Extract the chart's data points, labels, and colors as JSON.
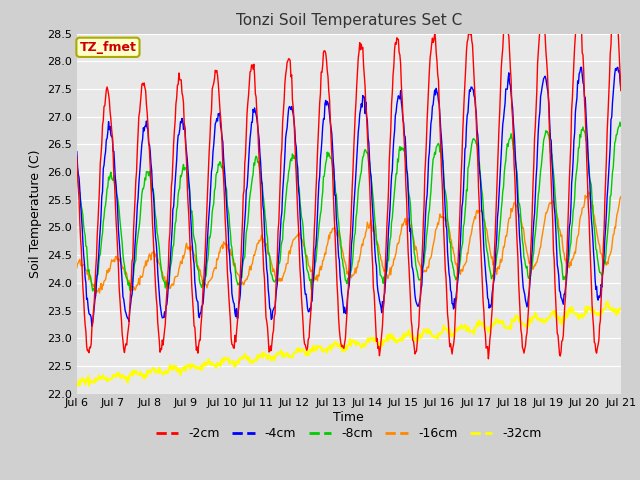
{
  "title": "Tonzi Soil Temperatures Set C",
  "xlabel": "Time",
  "ylabel": "Soil Temperature (C)",
  "ylim": [
    22.0,
    28.5
  ],
  "annotation_text": "TZ_fmet",
  "annotation_color": "#cc0000",
  "annotation_bg": "#ffffcc",
  "annotation_border": "#aaaa00",
  "colors": {
    "-2cm": "#ff0000",
    "-4cm": "#0000ff",
    "-8cm": "#00cc00",
    "-16cm": "#ff8800",
    "-32cm": "#ffff00"
  },
  "legend_labels": [
    "-2cm",
    "-4cm",
    "-8cm",
    "-16cm",
    "-32cm"
  ],
  "x_tick_labels": [
    "Jul 6",
    "Jul 7",
    "Jul 8",
    "Jul 9",
    "Jul 10",
    "Jul 11",
    "Jul 12",
    "Jul 13",
    "Jul 14",
    "Jul 15",
    "Jul 16",
    "Jul 17",
    "Jul 18",
    "Jul 19",
    "Jul 20",
    "Jul 21"
  ],
  "fig_bg": "#d0d0d0",
  "plot_bg": "#e8e8e8",
  "grid_color": "#ffffff"
}
